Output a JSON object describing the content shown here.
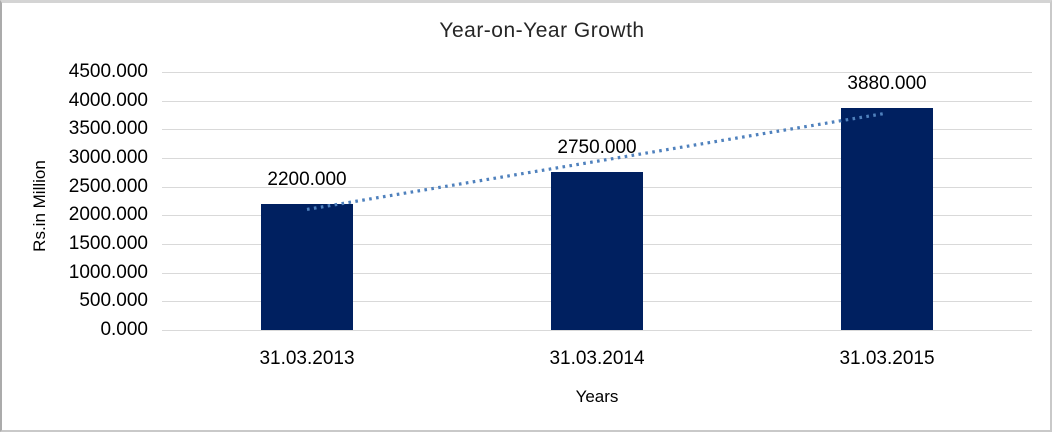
{
  "chart_data": {
    "type": "bar",
    "title": "Year-on-Year Growth",
    "xlabel": "Years",
    "ylabel": "Rs.in Million",
    "categories": [
      "31.03.2013",
      "31.03.2014",
      "31.03.2015"
    ],
    "values": [
      2200,
      2750,
      3880
    ],
    "data_labels": [
      "2200.000",
      "2750.000",
      "3880.000"
    ],
    "ylim": [
      0,
      4500
    ],
    "ytick_step": 500,
    "ytick_labels": [
      "0.000",
      "500.000",
      "1000.000",
      "1500.000",
      "2000.000",
      "2500.000",
      "3000.000",
      "3500.000",
      "4000.000",
      "4500.000"
    ],
    "grid": true,
    "legend": "none",
    "trendline": {
      "type": "linear",
      "style": "dotted",
      "color": "#4f81bd",
      "fitted_values": [
        2103.333,
        2943.333,
        3783.333
      ]
    },
    "colors": {
      "bar": "#002060",
      "gridline": "#d9d9d9",
      "text": "#000000",
      "title": "#262626",
      "border": "#c9c9c9"
    }
  }
}
